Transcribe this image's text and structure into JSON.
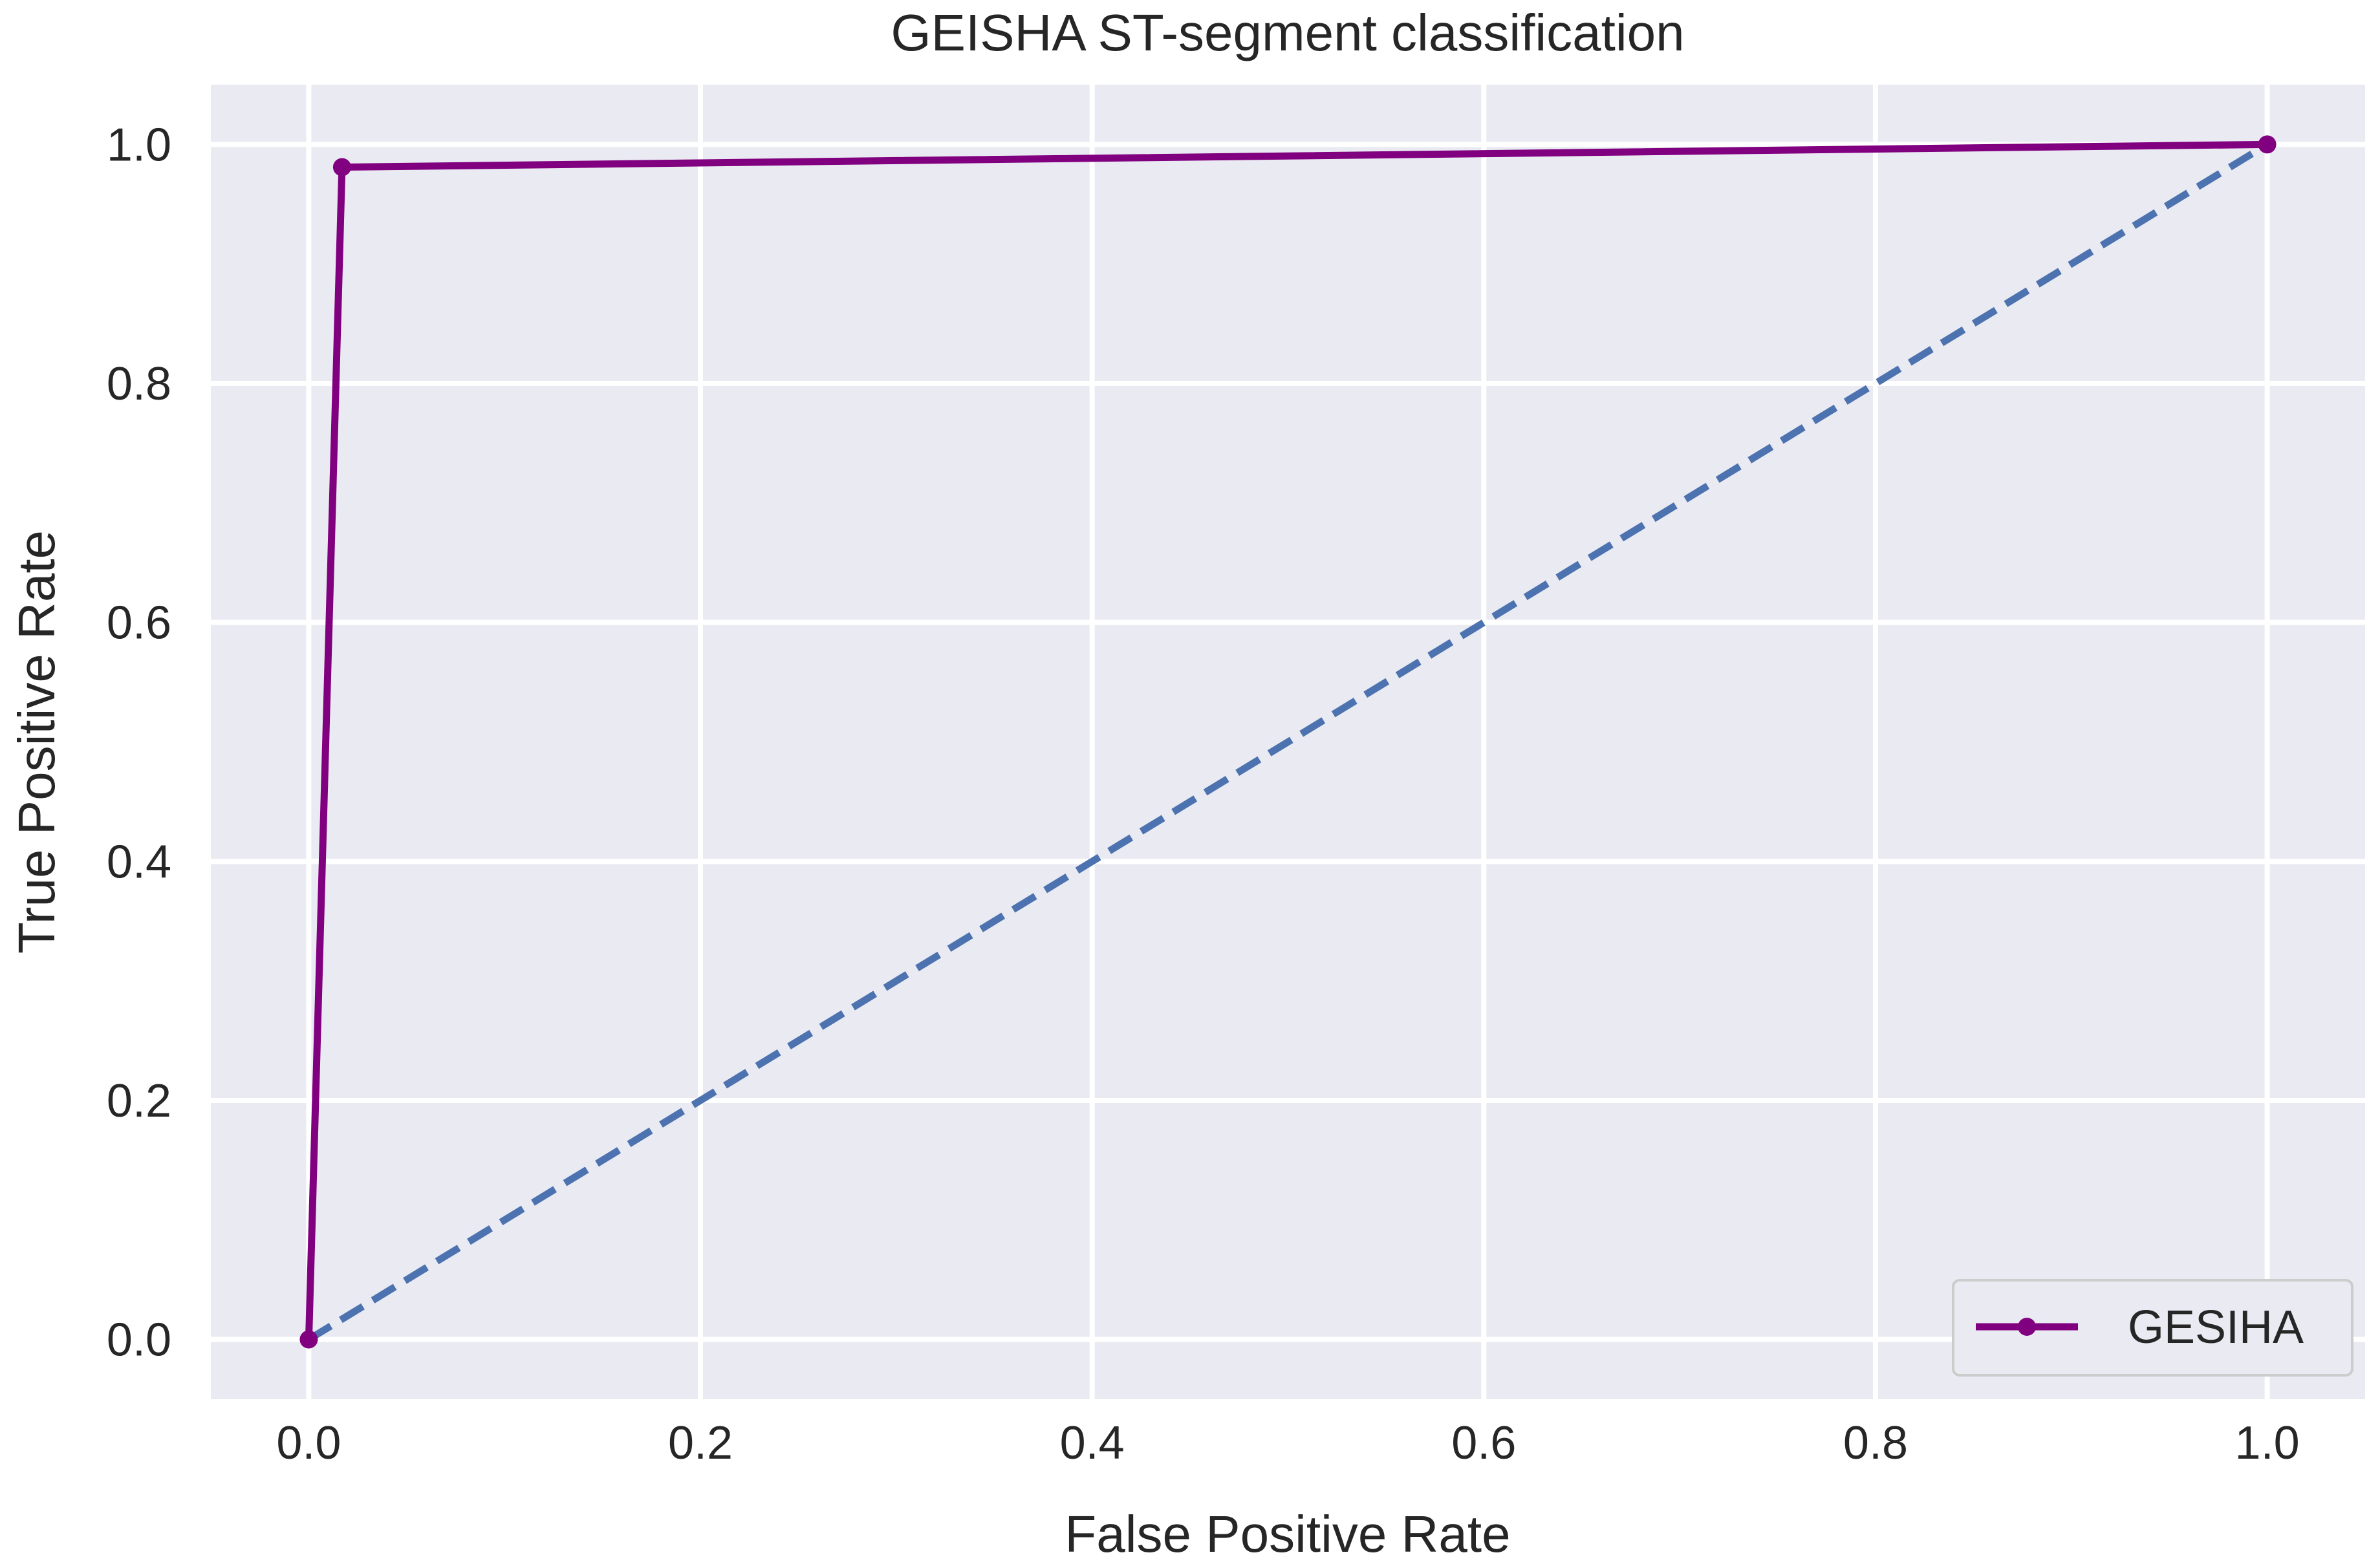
{
  "chart_data": {
    "type": "line",
    "title": "GEISHA ST-segment classification",
    "xlabel": "False Positive Rate",
    "ylabel": "True Positive Rate",
    "xlim": [
      -0.05,
      1.05
    ],
    "ylim": [
      -0.05,
      1.05
    ],
    "xticks": [
      0.0,
      0.2,
      0.4,
      0.6,
      0.8,
      1.0
    ],
    "xtick_labels": [
      "0.0",
      "0.2",
      "0.4",
      "0.6",
      "0.8",
      "1.0"
    ],
    "yticks": [
      0.0,
      0.2,
      0.4,
      0.6,
      0.8,
      1.0
    ],
    "ytick_labels": [
      "0.0",
      "0.2",
      "0.4",
      "0.6",
      "0.8",
      "1.0"
    ],
    "grid": true,
    "legend_position": "bottom-right",
    "series": [
      {
        "name": "GESIHA",
        "style": "solid-with-markers",
        "color": "#800080",
        "x": [
          0.0,
          0.017,
          1.0
        ],
        "y": [
          0.0,
          0.981,
          1.0
        ]
      },
      {
        "style": "dashed",
        "color": "#4c72b0",
        "x": [
          0.0,
          1.0
        ],
        "y": [
          0.0,
          1.0
        ]
      }
    ],
    "plot_background": "#eaeaf2",
    "grid_color": "#ffffff"
  }
}
